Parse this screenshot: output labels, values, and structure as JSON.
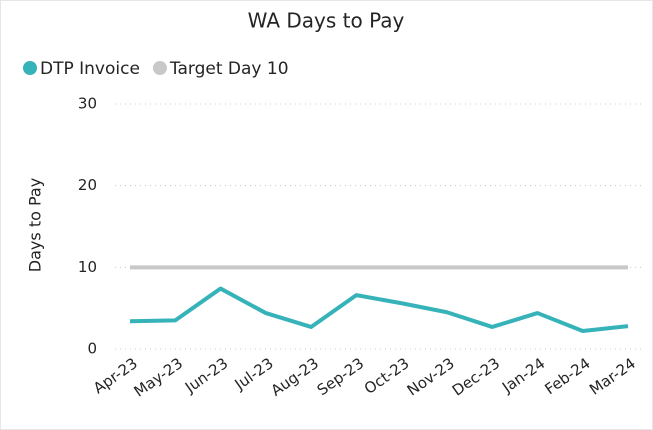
{
  "chart_data": {
    "type": "line",
    "title": "WA Days to Pay",
    "ylabel": "Days to Pay",
    "categories": [
      "Apr-23",
      "May-23",
      "Jun-23",
      "Jul-23",
      "Aug-23",
      "Sep-23",
      "Oct-23",
      "Nov-23",
      "Dec-23",
      "Jan-24",
      "Feb-24",
      "Mar-24"
    ],
    "series": [
      {
        "name": "DTP Invoice",
        "color": "#35b3b9",
        "values": [
          3.4,
          3.5,
          7.4,
          4.4,
          2.7,
          6.6,
          5.6,
          4.5,
          2.7,
          4.4,
          2.2,
          2.8
        ]
      },
      {
        "name": "Target Day 10",
        "color": "#c8c8c8",
        "values": [
          10,
          10,
          10,
          10,
          10,
          10,
          10,
          10,
          10,
          10,
          10,
          10
        ]
      }
    ],
    "ylim": [
      0,
      30
    ],
    "yticks": [
      0,
      10,
      20,
      30
    ],
    "grid": true
  }
}
